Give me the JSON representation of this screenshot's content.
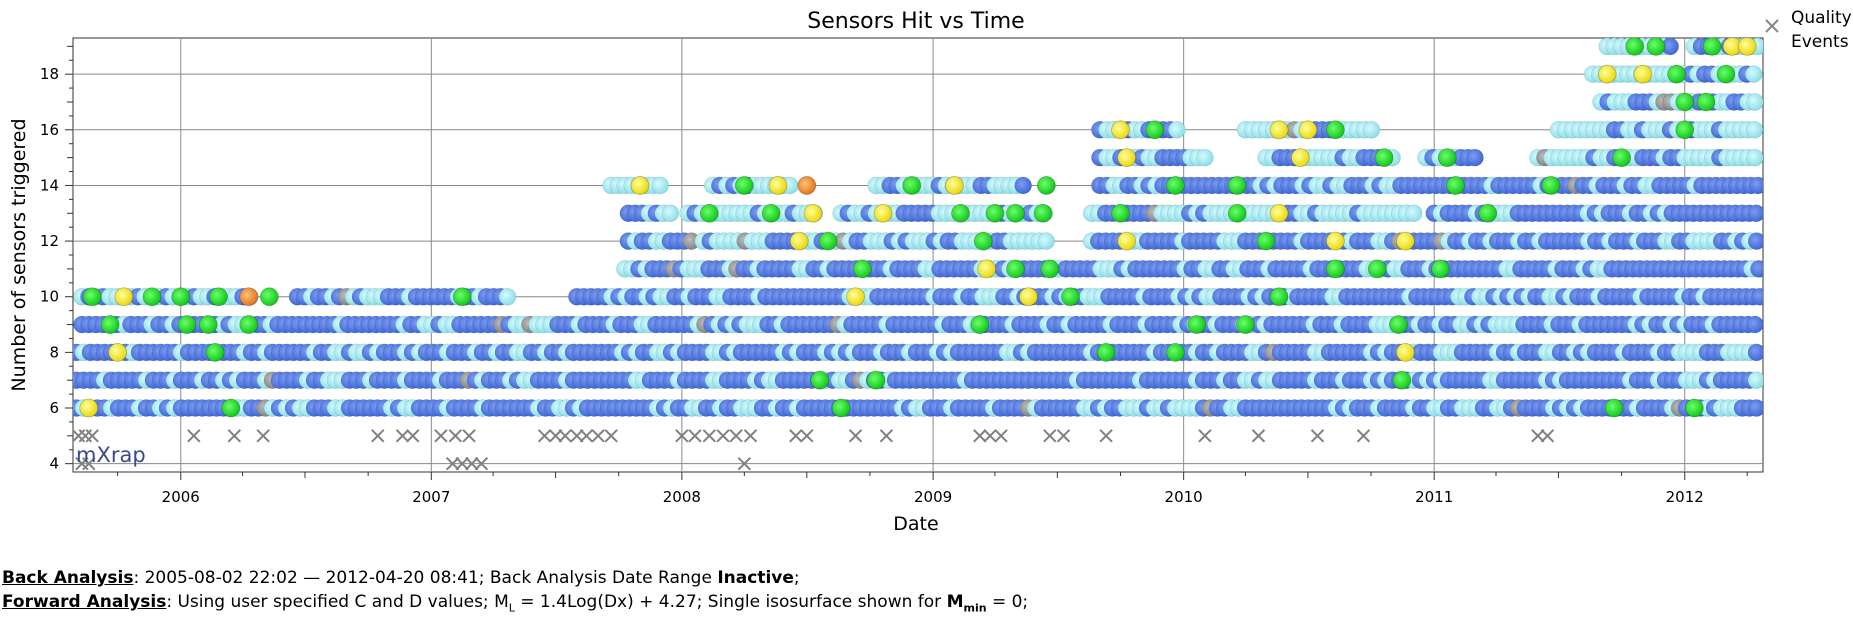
{
  "chart_data": {
    "type": "scatter",
    "title": "Sensors Hit vs Time",
    "xlabel": "Date",
    "ylabel": "Number of sensors triggered",
    "xlim": [
      "2005-07-28",
      "2012-04-24"
    ],
    "ylim": [
      3.7,
      19.3
    ],
    "x_tick_labels": [
      "2006",
      "2007",
      "2008",
      "2009",
      "2010",
      "2011",
      "2012"
    ],
    "y_tick_labels": [
      "4",
      "6",
      "8",
      "10",
      "12",
      "14",
      "16",
      "18"
    ],
    "grid": true,
    "legend": {
      "position": "top-right",
      "entries": [
        "Quality Events"
      ]
    },
    "logo": "mXrap",
    "colors": {
      "blue": "#4a72e0",
      "cyan": "#9eeaf2",
      "green": "#14e01e",
      "yellow": "#f4ea10",
      "orange": "#f08a1e",
      "gray": "#8e8e8e",
      "excluded": "#808080"
    },
    "series": [
      {
        "y": 6,
        "bands": [
          {
            "start": "2005-08-02",
            "end": "2012-04-20",
            "color": "blue"
          }
        ],
        "points": [
          {
            "x": "2005-08-20",
            "color": "yellow"
          },
          {
            "x": "2006-03-15",
            "color": "green"
          },
          {
            "x": "2008-08-20",
            "color": "green"
          },
          {
            "x": "2011-09-20",
            "color": "green"
          },
          {
            "x": "2012-01-15",
            "color": "green"
          }
        ]
      },
      {
        "y": 7,
        "bands": [
          {
            "start": "2005-08-02",
            "end": "2012-04-20",
            "color": "blue"
          }
        ],
        "points": [
          {
            "x": "2008-07-20",
            "color": "green"
          },
          {
            "x": "2008-10-10",
            "color": "green"
          },
          {
            "x": "2010-11-15",
            "color": "green"
          }
        ]
      },
      {
        "y": 8,
        "bands": [
          {
            "start": "2005-08-02",
            "end": "2012-04-20",
            "color": "blue"
          }
        ],
        "points": [
          {
            "x": "2005-10-01",
            "color": "yellow"
          },
          {
            "x": "2006-02-20",
            "color": "green"
          },
          {
            "x": "2009-09-10",
            "color": "green"
          },
          {
            "x": "2009-12-20",
            "color": "green"
          },
          {
            "x": "2010-11-20",
            "color": "yellow"
          }
        ]
      },
      {
        "y": 9,
        "bands": [
          {
            "start": "2005-08-10",
            "end": "2012-04-20",
            "color": "blue"
          }
        ],
        "points": [
          {
            "x": "2005-09-20",
            "color": "green"
          },
          {
            "x": "2006-01-10",
            "color": "green"
          },
          {
            "x": "2006-02-10",
            "color": "green"
          },
          {
            "x": "2006-04-10",
            "color": "green"
          },
          {
            "x": "2009-03-10",
            "color": "green"
          },
          {
            "x": "2010-01-20",
            "color": "green"
          },
          {
            "x": "2010-04-01",
            "color": "green"
          },
          {
            "x": "2010-11-10",
            "color": "green"
          }
        ]
      },
      {
        "y": 10,
        "bands": [
          {
            "start": "2005-08-10",
            "end": "2006-04-20",
            "color": "cyan"
          },
          {
            "start": "2006-06-20",
            "end": "2007-05-01",
            "color": "blue"
          },
          {
            "start": "2007-08-01",
            "end": "2012-04-20",
            "color": "blue"
          }
        ],
        "points": [
          {
            "x": "2005-08-25",
            "color": "green"
          },
          {
            "x": "2005-10-10",
            "color": "yellow"
          },
          {
            "x": "2005-11-20",
            "color": "green"
          },
          {
            "x": "2006-01-01",
            "color": "green"
          },
          {
            "x": "2006-02-25",
            "color": "green"
          },
          {
            "x": "2006-04-10",
            "color": "orange"
          },
          {
            "x": "2006-05-10",
            "color": "green"
          },
          {
            "x": "2007-02-15",
            "color": "green"
          },
          {
            "x": "2008-09-10",
            "color": "yellow"
          },
          {
            "x": "2009-05-20",
            "color": "yellow"
          },
          {
            "x": "2009-07-20",
            "color": "green"
          },
          {
            "x": "2010-05-20",
            "color": "green"
          }
        ]
      },
      {
        "y": 11,
        "bands": [
          {
            "start": "2007-10-10",
            "end": "2012-04-20",
            "color": "blue"
          }
        ],
        "points": [
          {
            "x": "2008-09-20",
            "color": "green"
          },
          {
            "x": "2009-03-20",
            "color": "yellow"
          },
          {
            "x": "2009-05-01",
            "color": "green"
          },
          {
            "x": "2009-06-20",
            "color": "green"
          },
          {
            "x": "2010-08-10",
            "color": "green"
          },
          {
            "x": "2010-10-10",
            "color": "green"
          },
          {
            "x": "2011-01-10",
            "color": "green"
          }
        ]
      },
      {
        "y": 12,
        "bands": [
          {
            "start": "2007-10-15",
            "end": "2008-01-20",
            "color": "blue"
          },
          {
            "start": "2008-02-01",
            "end": "2009-06-15",
            "color": "cyan"
          },
          {
            "start": "2009-08-20",
            "end": "2012-04-20",
            "color": "blue"
          }
        ],
        "points": [
          {
            "x": "2008-06-20",
            "color": "yellow"
          },
          {
            "x": "2008-08-01",
            "color": "green"
          },
          {
            "x": "2009-03-15",
            "color": "green"
          },
          {
            "x": "2009-10-10",
            "color": "yellow"
          },
          {
            "x": "2010-05-01",
            "color": "green"
          },
          {
            "x": "2010-08-10",
            "color": "yellow"
          },
          {
            "x": "2010-11-20",
            "color": "yellow"
          }
        ]
      },
      {
        "y": 13,
        "bands": [
          {
            "start": "2007-10-15",
            "end": "2007-12-20",
            "color": "cyan"
          },
          {
            "start": "2008-01-10",
            "end": "2008-02-10",
            "color": "cyan"
          },
          {
            "start": "2008-02-20",
            "end": "2008-07-20",
            "color": "cyan"
          },
          {
            "start": "2008-08-20",
            "end": "2009-06-20",
            "color": "cyan"
          },
          {
            "start": "2009-08-20",
            "end": "2010-12-10",
            "color": "cyan"
          },
          {
            "start": "2011-01-01",
            "end": "2012-04-20",
            "color": "blue"
          }
        ],
        "points": [
          {
            "x": "2008-02-10",
            "color": "green"
          },
          {
            "x": "2008-05-10",
            "color": "green"
          },
          {
            "x": "2008-07-10",
            "color": "yellow"
          },
          {
            "x": "2008-10-20",
            "color": "yellow"
          },
          {
            "x": "2009-02-10",
            "color": "green"
          },
          {
            "x": "2009-04-01",
            "color": "green"
          },
          {
            "x": "2009-05-01",
            "color": "green"
          },
          {
            "x": "2009-06-10",
            "color": "green"
          },
          {
            "x": "2009-10-01",
            "color": "green"
          },
          {
            "x": "2010-03-20",
            "color": "green"
          },
          {
            "x": "2010-05-20",
            "color": "yellow"
          },
          {
            "x": "2011-03-20",
            "color": "green"
          }
        ]
      },
      {
        "y": 14,
        "bands": [
          {
            "start": "2007-09-20",
            "end": "2007-12-01",
            "color": "cyan"
          },
          {
            "start": "2008-02-15",
            "end": "2008-06-15",
            "color": "cyan"
          },
          {
            "start": "2008-10-10",
            "end": "2009-05-20",
            "color": "cyan"
          },
          {
            "start": "2009-09-01",
            "end": "2012-04-20",
            "color": "blue"
          }
        ],
        "points": [
          {
            "x": "2007-11-01",
            "color": "yellow"
          },
          {
            "x": "2008-04-01",
            "color": "green"
          },
          {
            "x": "2008-05-20",
            "color": "yellow"
          },
          {
            "x": "2008-07-01",
            "color": "orange"
          },
          {
            "x": "2008-12-01",
            "color": "green"
          },
          {
            "x": "2009-02-01",
            "color": "yellow"
          },
          {
            "x": "2009-06-15",
            "color": "green"
          },
          {
            "x": "2009-12-20",
            "color": "green"
          },
          {
            "x": "2010-03-20",
            "color": "green"
          },
          {
            "x": "2011-02-01",
            "color": "green"
          },
          {
            "x": "2011-06-20",
            "color": "green"
          }
        ]
      },
      {
        "y": 15,
        "bands": [
          {
            "start": "2009-09-01",
            "end": "2010-02-01",
            "color": "cyan"
          },
          {
            "start": "2010-05-01",
            "end": "2010-11-10",
            "color": "cyan"
          },
          {
            "start": "2010-12-20",
            "end": "2011-03-10",
            "color": "cyan"
          },
          {
            "start": "2011-06-01",
            "end": "2012-04-20",
            "color": "cyan"
          }
        ],
        "points": [
          {
            "x": "2009-10-10",
            "color": "yellow"
          },
          {
            "x": "2010-06-20",
            "color": "yellow"
          },
          {
            "x": "2010-10-20",
            "color": "green"
          },
          {
            "x": "2011-01-20",
            "color": "green"
          },
          {
            "x": "2011-10-01",
            "color": "green"
          }
        ]
      },
      {
        "y": 16,
        "bands": [
          {
            "start": "2009-09-01",
            "end": "2010-01-01",
            "color": "cyan"
          },
          {
            "start": "2010-04-01",
            "end": "2010-10-10",
            "color": "cyan"
          },
          {
            "start": "2011-07-01",
            "end": "2012-04-20",
            "color": "cyan"
          }
        ],
        "points": [
          {
            "x": "2009-10-01",
            "color": "yellow"
          },
          {
            "x": "2009-11-20",
            "color": "green"
          },
          {
            "x": "2010-05-20",
            "color": "yellow"
          },
          {
            "x": "2010-07-01",
            "color": "yellow"
          },
          {
            "x": "2010-08-10",
            "color": "green"
          },
          {
            "x": "2012-01-01",
            "color": "green"
          }
        ]
      },
      {
        "y": 17,
        "bands": [
          {
            "start": "2011-09-01",
            "end": "2012-04-20",
            "color": "cyan"
          }
        ],
        "points": [
          {
            "x": "2012-01-01",
            "color": "green"
          },
          {
            "x": "2012-02-01",
            "color": "green"
          }
        ]
      },
      {
        "y": 18,
        "bands": [
          {
            "start": "2011-08-20",
            "end": "2012-04-20",
            "color": "cyan"
          }
        ],
        "points": [
          {
            "x": "2011-09-10",
            "color": "yellow"
          },
          {
            "x": "2011-11-01",
            "color": "yellow"
          },
          {
            "x": "2011-12-20",
            "color": "green"
          },
          {
            "x": "2012-03-01",
            "color": "green"
          }
        ]
      },
      {
        "y": 19,
        "bands": [
          {
            "start": "2011-09-10",
            "end": "2011-12-20",
            "color": "cyan"
          },
          {
            "start": "2012-01-15",
            "end": "2012-04-20",
            "color": "cyan"
          }
        ],
        "points": [
          {
            "x": "2011-10-20",
            "color": "green"
          },
          {
            "x": "2011-11-20",
            "color": "green"
          },
          {
            "x": "2012-02-10",
            "color": "green"
          },
          {
            "x": "2012-03-10",
            "color": "yellow"
          },
          {
            "x": "2012-04-01",
            "color": "yellow"
          }
        ]
      }
    ],
    "excluded_events": [
      {
        "x": "2005-08-05",
        "y": 5
      },
      {
        "x": "2005-08-15",
        "y": 5
      },
      {
        "x": "2005-08-25",
        "y": 5
      },
      {
        "x": "2005-08-10",
        "y": 4
      },
      {
        "x": "2005-08-20",
        "y": 4
      },
      {
        "x": "2006-01-20",
        "y": 5
      },
      {
        "x": "2006-03-20",
        "y": 5
      },
      {
        "x": "2006-05-01",
        "y": 5
      },
      {
        "x": "2006-10-15",
        "y": 5
      },
      {
        "x": "2006-11-20",
        "y": 5
      },
      {
        "x": "2006-12-05",
        "y": 5
      },
      {
        "x": "2007-01-15",
        "y": 5
      },
      {
        "x": "2007-02-05",
        "y": 5
      },
      {
        "x": "2007-02-25",
        "y": 5
      },
      {
        "x": "2007-02-01",
        "y": 4
      },
      {
        "x": "2007-02-15",
        "y": 4
      },
      {
        "x": "2007-03-01",
        "y": 4
      },
      {
        "x": "2007-03-15",
        "y": 4
      },
      {
        "x": "2007-06-15",
        "y": 5
      },
      {
        "x": "2007-07-01",
        "y": 5
      },
      {
        "x": "2007-07-15",
        "y": 5
      },
      {
        "x": "2007-08-01",
        "y": 5
      },
      {
        "x": "2007-08-15",
        "y": 5
      },
      {
        "x": "2007-09-01",
        "y": 5
      },
      {
        "x": "2007-09-20",
        "y": 5
      },
      {
        "x": "2008-01-01",
        "y": 5
      },
      {
        "x": "2008-01-20",
        "y": 5
      },
      {
        "x": "2008-02-10",
        "y": 5
      },
      {
        "x": "2008-03-01",
        "y": 5
      },
      {
        "x": "2008-03-20",
        "y": 5
      },
      {
        "x": "2008-04-10",
        "y": 5
      },
      {
        "x": "2008-04-01",
        "y": 4
      },
      {
        "x": "2008-06-15",
        "y": 5
      },
      {
        "x": "2008-07-01",
        "y": 5
      },
      {
        "x": "2008-09-10",
        "y": 5
      },
      {
        "x": "2008-10-25",
        "y": 5
      },
      {
        "x": "2009-03-10",
        "y": 5
      },
      {
        "x": "2009-03-25",
        "y": 5
      },
      {
        "x": "2009-04-10",
        "y": 5
      },
      {
        "x": "2009-06-20",
        "y": 5
      },
      {
        "x": "2009-07-10",
        "y": 5
      },
      {
        "x": "2009-09-10",
        "y": 5
      },
      {
        "x": "2010-02-01",
        "y": 5
      },
      {
        "x": "2010-04-20",
        "y": 5
      },
      {
        "x": "2010-07-15",
        "y": 5
      },
      {
        "x": "2010-09-20",
        "y": 5
      },
      {
        "x": "2011-06-01",
        "y": 5
      },
      {
        "x": "2011-06-15",
        "y": 5
      }
    ]
  },
  "footer": {
    "back_label": "Back Analysis",
    "back_text": ": 2005-08-02 22:02 — 2012-04-20 08:41; Back Analysis Date Range ",
    "back_state": "Inactive",
    "back_end": ";",
    "forward_label": "Forward Analysis",
    "forward_text1": ": Using user specified C and D values; M",
    "forward_sub1": "L",
    "forward_text2": " = 1.4Log(Dx) + 4.27; Single isosurface shown for ",
    "forward_bold": "M",
    "forward_sub2": "min",
    "forward_text3": " = 0;"
  }
}
